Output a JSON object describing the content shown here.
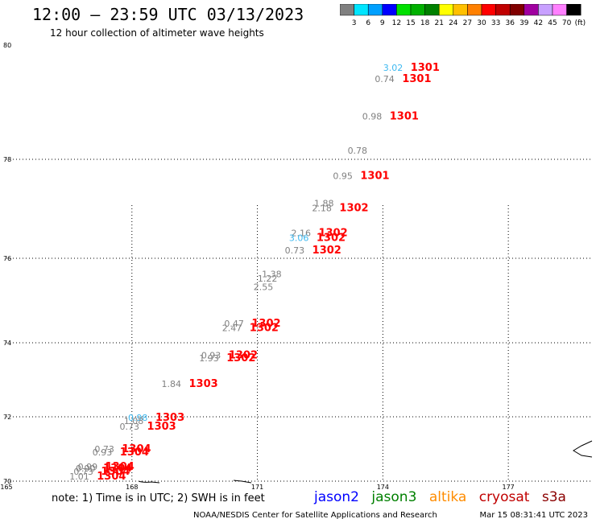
{
  "header": {
    "title": "12:00 – 23:59 UTC 03/13/2023",
    "subtitle": "12 hour collection of altimeter wave heights"
  },
  "colorbar": {
    "colors": [
      "#808080",
      "#00e5ff",
      "#00a0ff",
      "#0000ff",
      "#00e000",
      "#00b000",
      "#008000",
      "#ffff00",
      "#ffc000",
      "#ff8000",
      "#ff0000",
      "#c00000",
      "#800000",
      "#a000a0",
      "#c8a0ff",
      "#ff80ff",
      "#000000"
    ],
    "labels": [
      "3",
      "6",
      "9",
      "12",
      "15",
      "18",
      "21",
      "24",
      "27",
      "30",
      "33",
      "36",
      "39",
      "42",
      "45",
      "70"
    ],
    "unit": "(ft)"
  },
  "chart_data": {
    "type": "scatter",
    "title": "12:00 – 23:59 UTC 03/13/2023",
    "subtitle": "12 hour collection of altimeter wave heights",
    "xlabel": "",
    "ylabel": "",
    "xlim": [
      165,
      179
    ],
    "ylim": [
      70,
      80
    ],
    "grid": true,
    "x_ticks": [
      {
        "value": 165,
        "label": "165"
      },
      {
        "value": 168,
        "label": "168"
      },
      {
        "value": 171,
        "label": "171"
      },
      {
        "value": 174,
        "label": "174"
      },
      {
        "value": 177,
        "label": "177"
      }
    ],
    "y_ticks": [
      {
        "value": 70,
        "label": "70"
      },
      {
        "value": 72,
        "label": "72"
      },
      {
        "value": 74,
        "label": "74"
      },
      {
        "value": 76,
        "label": "76"
      },
      {
        "value": 78,
        "label": "78"
      },
      {
        "value": 80,
        "label": "80"
      }
    ],
    "observations": [
      {
        "lon": 174.7,
        "lat": 79.55,
        "height": "3.02",
        "time": "1301",
        "satellite": "jason2"
      },
      {
        "lon": 174.5,
        "lat": 79.35,
        "height": "0.74",
        "time": "1301",
        "satellite": "cryosat"
      },
      {
        "lon": 174.2,
        "lat": 78.7,
        "height": "0.98",
        "time": "1301",
        "satellite": "cryosat"
      },
      {
        "lon": 173.85,
        "lat": 78.1,
        "height": "0.78",
        "time": "",
        "satellite": "cryosat"
      },
      {
        "lon": 173.5,
        "lat": 77.6,
        "height": "0.95",
        "time": "1301",
        "satellite": "cryosat"
      },
      {
        "lon": 173.05,
        "lat": 77.05,
        "height": "1.88",
        "time": "",
        "satellite": "cryosat"
      },
      {
        "lon": 173.0,
        "lat": 76.95,
        "height": "2.18",
        "time": "1302",
        "satellite": "cryosat"
      },
      {
        "lon": 172.5,
        "lat": 76.45,
        "height": "2.16",
        "time": "1302",
        "satellite": "cryosat"
      },
      {
        "lon": 172.45,
        "lat": 76.35,
        "height": "3.06",
        "time": "1302",
        "satellite": "jason2"
      },
      {
        "lon": 172.35,
        "lat": 76.1,
        "height": "0.73",
        "time": "1302",
        "satellite": "cryosat"
      },
      {
        "lon": 171.8,
        "lat": 75.55,
        "height": "1.38",
        "time": "",
        "satellite": "cryosat"
      },
      {
        "lon": 171.7,
        "lat": 75.45,
        "height": "1.22",
        "time": "",
        "satellite": "cryosat"
      },
      {
        "lon": 171.6,
        "lat": 75.25,
        "height": "2.55",
        "time": "",
        "satellite": "cryosat"
      },
      {
        "lon": 170.9,
        "lat": 74.38,
        "height": "0.47",
        "time": "1302",
        "satellite": "cryosat"
      },
      {
        "lon": 170.85,
        "lat": 74.28,
        "height": "2.47",
        "time": "1302",
        "satellite": "cryosat"
      },
      {
        "lon": 170.35,
        "lat": 73.58,
        "height": "0.93",
        "time": "1302",
        "satellite": "cryosat"
      },
      {
        "lon": 170.3,
        "lat": 73.5,
        "height": "1.93",
        "time": "1302",
        "satellite": "cryosat"
      },
      {
        "lon": 169.4,
        "lat": 72.8,
        "height": "1.84",
        "time": "1303",
        "satellite": "cryosat"
      },
      {
        "lon": 168.6,
        "lat": 71.88,
        "height": "0.98",
        "time": "1303",
        "satellite": "jason2"
      },
      {
        "lon": 168.5,
        "lat": 71.78,
        "height": "1.08",
        "time": "",
        "satellite": "cryosat"
      },
      {
        "lon": 168.4,
        "lat": 71.6,
        "height": "0.73",
        "time": "1303",
        "satellite": "cryosat"
      },
      {
        "lon": 167.8,
        "lat": 70.9,
        "height": "0.73",
        "time": "1304",
        "satellite": "cryosat"
      },
      {
        "lon": 167.75,
        "lat": 70.8,
        "height": "0.93",
        "time": "1304",
        "satellite": "cryosat"
      },
      {
        "lon": 167.4,
        "lat": 70.35,
        "height": "0.99",
        "time": "1304",
        "satellite": "cryosat"
      },
      {
        "lon": 167.35,
        "lat": 70.3,
        "height": "0.90",
        "time": "1304",
        "satellite": "cryosat"
      },
      {
        "lon": 167.3,
        "lat": 70.2,
        "height": "0.73",
        "time": "1304",
        "satellite": "cryosat"
      },
      {
        "lon": 167.2,
        "lat": 70.05,
        "height": "1.01",
        "time": "1304",
        "satellite": "cryosat"
      }
    ]
  },
  "satellite_colors": {
    "jason2": "#3cb8f0",
    "cryosat_height": "#808080",
    "cryosat_time": "#ff0000"
  },
  "legend": {
    "items": [
      {
        "label": "jason2",
        "color": "#0000ff"
      },
      {
        "label": "jason3",
        "color": "#008000"
      },
      {
        "label": "altika",
        "color": "#ff8c00"
      },
      {
        "label": "cryosat",
        "color": "#c00000"
      },
      {
        "label": "s3a",
        "color": "#8b0000"
      }
    ]
  },
  "note": "note: 1) Time is in UTC; 2) SWH is in feet",
  "footer": {
    "credit": "NOAA/NESDIS Center for Satellite Applications and Research",
    "timestamp": "Mar 15 08:31:41 UTC 2023"
  }
}
